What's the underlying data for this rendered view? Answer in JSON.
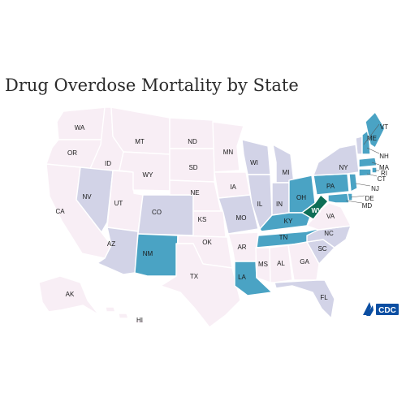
{
  "title": "Drug Overdose Mortality by State",
  "logo": {
    "text": "CDC",
    "icon": "cdc-eagle-logo"
  },
  "colors": {
    "lowest": "#f8eef5",
    "low": "#d2d3e7",
    "high": "#4aa3c4",
    "highest": "#0d6e56",
    "border": "#ffffff"
  },
  "states": [
    {
      "id": "WA",
      "tier": "lowest"
    },
    {
      "id": "OR",
      "tier": "lowest"
    },
    {
      "id": "CA",
      "tier": "lowest"
    },
    {
      "id": "ID",
      "tier": "lowest"
    },
    {
      "id": "NV",
      "tier": "low"
    },
    {
      "id": "UT",
      "tier": "lowest"
    },
    {
      "id": "AZ",
      "tier": "low"
    },
    {
      "id": "MT",
      "tier": "lowest"
    },
    {
      "id": "WY",
      "tier": "lowest"
    },
    {
      "id": "CO",
      "tier": "low"
    },
    {
      "id": "NM",
      "tier": "high"
    },
    {
      "id": "ND",
      "tier": "lowest"
    },
    {
      "id": "SD",
      "tier": "lowest"
    },
    {
      "id": "NE",
      "tier": "lowest"
    },
    {
      "id": "KS",
      "tier": "lowest"
    },
    {
      "id": "OK",
      "tier": "lowest"
    },
    {
      "id": "TX",
      "tier": "lowest"
    },
    {
      "id": "MN",
      "tier": "lowest"
    },
    {
      "id": "IA",
      "tier": "lowest"
    },
    {
      "id": "MO",
      "tier": "low"
    },
    {
      "id": "AR",
      "tier": "lowest"
    },
    {
      "id": "LA",
      "tier": "high"
    },
    {
      "id": "WI",
      "tier": "low"
    },
    {
      "id": "IL",
      "tier": "low"
    },
    {
      "id": "MI",
      "tier": "low"
    },
    {
      "id": "IN",
      "tier": "low"
    },
    {
      "id": "OH",
      "tier": "high"
    },
    {
      "id": "KY",
      "tier": "high"
    },
    {
      "id": "TN",
      "tier": "high"
    },
    {
      "id": "MS",
      "tier": "lowest"
    },
    {
      "id": "AL",
      "tier": "lowest"
    },
    {
      "id": "GA",
      "tier": "lowest"
    },
    {
      "id": "FL",
      "tier": "low"
    },
    {
      "id": "SC",
      "tier": "low"
    },
    {
      "id": "NC",
      "tier": "low"
    },
    {
      "id": "VA",
      "tier": "lowest"
    },
    {
      "id": "WV",
      "tier": "highest"
    },
    {
      "id": "PA",
      "tier": "high"
    },
    {
      "id": "NY",
      "tier": "low"
    },
    {
      "id": "VT",
      "tier": "low"
    },
    {
      "id": "NH",
      "tier": "high"
    },
    {
      "id": "ME",
      "tier": "high"
    },
    {
      "id": "MA",
      "tier": "high"
    },
    {
      "id": "RI",
      "tier": "high"
    },
    {
      "id": "CT",
      "tier": "high"
    },
    {
      "id": "NJ",
      "tier": "high"
    },
    {
      "id": "DE",
      "tier": "high"
    },
    {
      "id": "MD",
      "tier": "high"
    },
    {
      "id": "AK",
      "tier": "lowest"
    },
    {
      "id": "HI",
      "tier": "lowest"
    }
  ]
}
